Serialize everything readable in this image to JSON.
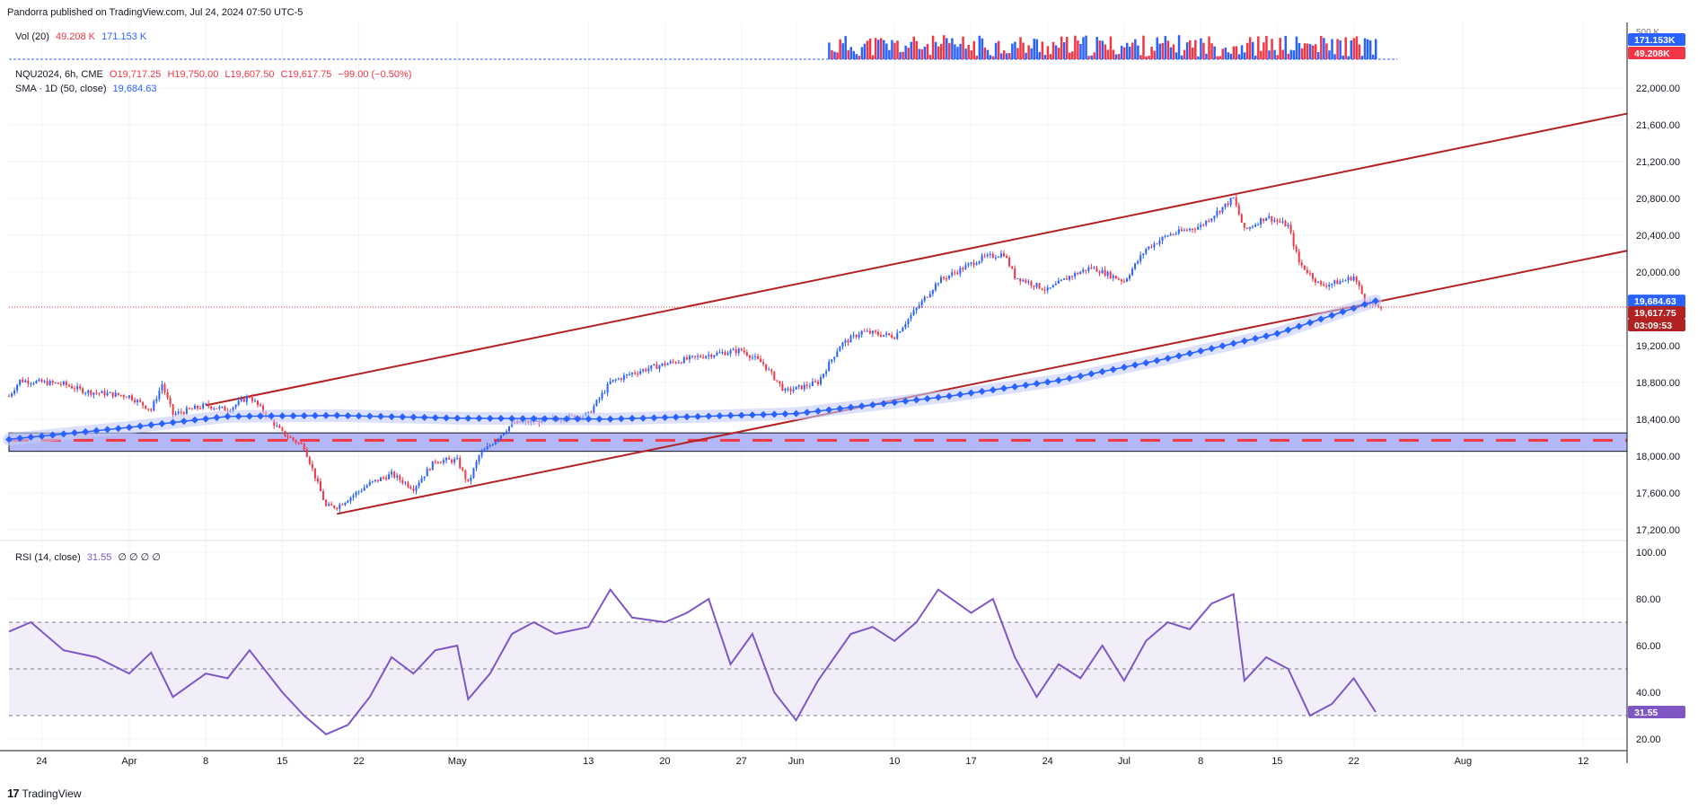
{
  "header": {
    "published_text": "Pandorra published on TradingView.com, Jul 24, 2024 07:50 UTC-5"
  },
  "footer": {
    "brand_logo": "17",
    "brand_text": "TradingView"
  },
  "volume_legend": {
    "label": "Vol (20)",
    "value1": "49.208 K",
    "value2": "171.153 K"
  },
  "symbol_legend": {
    "symbol": "NQU2024, 6h, CME",
    "open": "O19,717.25",
    "high": "H19,750.00",
    "low": "L19,607.50",
    "close": "C19,617.75",
    "change": "−99.00 (−0.50%)"
  },
  "sma_legend": {
    "label": "SMA · 1D (50, close)",
    "value": "19,684.63"
  },
  "rsi_legend": {
    "label": "RSI (14, close)",
    "value": "31.55",
    "extras": "∅ ∅ ∅ ∅"
  },
  "colors": {
    "up": "#2962ff",
    "down": "#f23645",
    "channel": "#b22222",
    "sma": "#2962ff",
    "rsi": "#7e57c2",
    "zone": "#b3b7f5"
  },
  "price_tags": {
    "volume_top": "500 K",
    "volume_high": "171.153K",
    "volume_low": "49.208K",
    "sma": "19,684.63",
    "last": "19,617.75",
    "countdown": "03:09:53",
    "rsi": "31.55"
  },
  "chart_data": [
    {
      "type": "candlestick",
      "title": "NQU2024, 6h, CME",
      "y_ticks": [
        "22,000.00",
        "21,600.00",
        "21,200.00",
        "20,800.00",
        "20,400.00",
        "20,000.00",
        "19,200.00",
        "18,800.00",
        "18,400.00",
        "18,000.00",
        "17,600.00",
        "17,200.00"
      ],
      "x_ticks": [
        "24",
        "Apr",
        "8",
        "15",
        "22",
        "May",
        "13",
        "20",
        "27",
        "Jun",
        "10",
        "17",
        "24",
        "Jul",
        "8",
        "15",
        "22",
        "Aug",
        "12"
      ],
      "ylim": [
        17100,
        22350
      ],
      "x_dates": [
        "2024-03-21",
        "2024-08-16"
      ],
      "close_path": [
        [
          "2024-03-21",
          18650
        ],
        [
          "2024-03-22",
          18820
        ],
        [
          "2024-03-26",
          18780
        ],
        [
          "2024-03-28",
          18700
        ],
        [
          "2024-04-01",
          18650
        ],
        [
          "2024-04-03",
          18500
        ],
        [
          "2024-04-04",
          18780
        ],
        [
          "2024-04-05",
          18450
        ],
        [
          "2024-04-08",
          18550
        ],
        [
          "2024-04-10",
          18500
        ],
        [
          "2024-04-12",
          18650
        ],
        [
          "2024-04-15",
          18250
        ],
        [
          "2024-04-17",
          18100
        ],
        [
          "2024-04-19",
          17450
        ],
        [
          "2024-04-20",
          17450
        ],
        [
          "2024-04-23",
          17700
        ],
        [
          "2024-04-25",
          17800
        ],
        [
          "2024-04-27",
          17650
        ],
        [
          "2024-04-29",
          17950
        ],
        [
          "2024-05-01",
          17950
        ],
        [
          "2024-05-02",
          17700
        ],
        [
          "2024-05-03",
          18000
        ],
        [
          "2024-05-06",
          18350
        ],
        [
          "2024-05-10",
          18400
        ],
        [
          "2024-05-13",
          18450
        ],
        [
          "2024-05-15",
          18800
        ],
        [
          "2024-05-17",
          18900
        ],
        [
          "2024-05-20",
          19000
        ],
        [
          "2024-05-22",
          19050
        ],
        [
          "2024-05-24",
          19100
        ],
        [
          "2024-05-27",
          19150
        ],
        [
          "2024-05-29",
          19000
        ],
        [
          "2024-05-31",
          18700
        ],
        [
          "2024-06-03",
          18800
        ],
        [
          "2024-06-05",
          19200
        ],
        [
          "2024-06-07",
          19350
        ],
        [
          "2024-06-10",
          19300
        ],
        [
          "2024-06-12",
          19600
        ],
        [
          "2024-06-14",
          19900
        ],
        [
          "2024-06-18",
          20150
        ],
        [
          "2024-06-20",
          20200
        ],
        [
          "2024-06-21",
          19950
        ],
        [
          "2024-06-24",
          19800
        ],
        [
          "2024-06-26",
          19950
        ],
        [
          "2024-06-28",
          20050
        ],
        [
          "2024-07-01",
          19900
        ],
        [
          "2024-07-03",
          20250
        ],
        [
          "2024-07-05",
          20400
        ],
        [
          "2024-07-08",
          20500
        ],
        [
          "2024-07-10",
          20700
        ],
        [
          "2024-07-11",
          20800
        ],
        [
          "2024-07-12",
          20450
        ],
        [
          "2024-07-14",
          20600
        ],
        [
          "2024-07-16",
          20500
        ],
        [
          "2024-07-17",
          20100
        ],
        [
          "2024-07-19",
          19850
        ],
        [
          "2024-07-21",
          19900
        ],
        [
          "2024-07-22",
          19950
        ],
        [
          "2024-07-23",
          19700
        ],
        [
          "2024-07-24",
          19617.75
        ]
      ],
      "sma_points": [
        [
          "2024-03-21",
          18180
        ],
        [
          "2024-04-01",
          18310
        ],
        [
          "2024-04-10",
          18430
        ],
        [
          "2024-04-20",
          18440
        ],
        [
          "2024-05-01",
          18410
        ],
        [
          "2024-05-15",
          18400
        ],
        [
          "2024-06-01",
          18460
        ],
        [
          "2024-06-15",
          18650
        ],
        [
          "2024-06-25",
          18820
        ],
        [
          "2024-07-05",
          19060
        ],
        [
          "2024-07-15",
          19330
        ],
        [
          "2024-07-24",
          19684.63
        ]
      ],
      "channel_lines": [
        {
          "from": [
            "2024-04-08",
            18550
          ],
          "to": [
            "2024-08-16",
            21720
          ]
        },
        {
          "from": [
            "2024-04-20",
            17370
          ],
          "to": [
            "2024-08-16",
            20230
          ]
        }
      ],
      "support_zone": [
        18050,
        18250
      ],
      "support_dash": 18170,
      "last_price": 19617.75,
      "sma_last": 19684.63
    },
    {
      "type": "bar",
      "title": "Vol (20)",
      "values_k": [
        49.208,
        171.153
      ],
      "ylim": [
        0,
        500
      ]
    },
    {
      "type": "line",
      "title": "RSI (14, close)",
      "y_ticks": [
        "100.00",
        "80.00",
        "60.00",
        "40.00",
        "20.00"
      ],
      "ylim": [
        15,
        105
      ],
      "bands": [
        30,
        50,
        70
      ],
      "rsi_path": [
        [
          "2024-03-21",
          66
        ],
        [
          "2024-03-23",
          70
        ],
        [
          "2024-03-26",
          58
        ],
        [
          "2024-03-29",
          55
        ],
        [
          "2024-04-01",
          48
        ],
        [
          "2024-04-03",
          57
        ],
        [
          "2024-04-05",
          38
        ],
        [
          "2024-04-08",
          48
        ],
        [
          "2024-04-10",
          46
        ],
        [
          "2024-04-12",
          58
        ],
        [
          "2024-04-15",
          40
        ],
        [
          "2024-04-17",
          30
        ],
        [
          "2024-04-19",
          22
        ],
        [
          "2024-04-21",
          26
        ],
        [
          "2024-04-23",
          38
        ],
        [
          "2024-04-25",
          55
        ],
        [
          "2024-04-27",
          48
        ],
        [
          "2024-04-29",
          58
        ],
        [
          "2024-05-01",
          60
        ],
        [
          "2024-05-02",
          37
        ],
        [
          "2024-05-04",
          48
        ],
        [
          "2024-05-06",
          65
        ],
        [
          "2024-05-08",
          70
        ],
        [
          "2024-05-10",
          65
        ],
        [
          "2024-05-13",
          68
        ],
        [
          "2024-05-15",
          84
        ],
        [
          "2024-05-17",
          72
        ],
        [
          "2024-05-20",
          70
        ],
        [
          "2024-05-22",
          74
        ],
        [
          "2024-05-24",
          80
        ],
        [
          "2024-05-26",
          52
        ],
        [
          "2024-05-28",
          65
        ],
        [
          "2024-05-30",
          40
        ],
        [
          "2024-06-01",
          28
        ],
        [
          "2024-06-03",
          45
        ],
        [
          "2024-06-06",
          65
        ],
        [
          "2024-06-08",
          68
        ],
        [
          "2024-06-10",
          62
        ],
        [
          "2024-06-12",
          70
        ],
        [
          "2024-06-14",
          84
        ],
        [
          "2024-06-17",
          74
        ],
        [
          "2024-06-19",
          80
        ],
        [
          "2024-06-21",
          55
        ],
        [
          "2024-06-23",
          38
        ],
        [
          "2024-06-25",
          52
        ],
        [
          "2024-06-27",
          46
        ],
        [
          "2024-06-29",
          60
        ],
        [
          "2024-07-01",
          45
        ],
        [
          "2024-07-03",
          62
        ],
        [
          "2024-07-05",
          70
        ],
        [
          "2024-07-07",
          67
        ],
        [
          "2024-07-09",
          78
        ],
        [
          "2024-07-11",
          82
        ],
        [
          "2024-07-12",
          45
        ],
        [
          "2024-07-14",
          55
        ],
        [
          "2024-07-16",
          50
        ],
        [
          "2024-07-18",
          30
        ],
        [
          "2024-07-20",
          35
        ],
        [
          "2024-07-22",
          46
        ],
        [
          "2024-07-24",
          31.55
        ]
      ],
      "last_value": 31.55
    }
  ]
}
